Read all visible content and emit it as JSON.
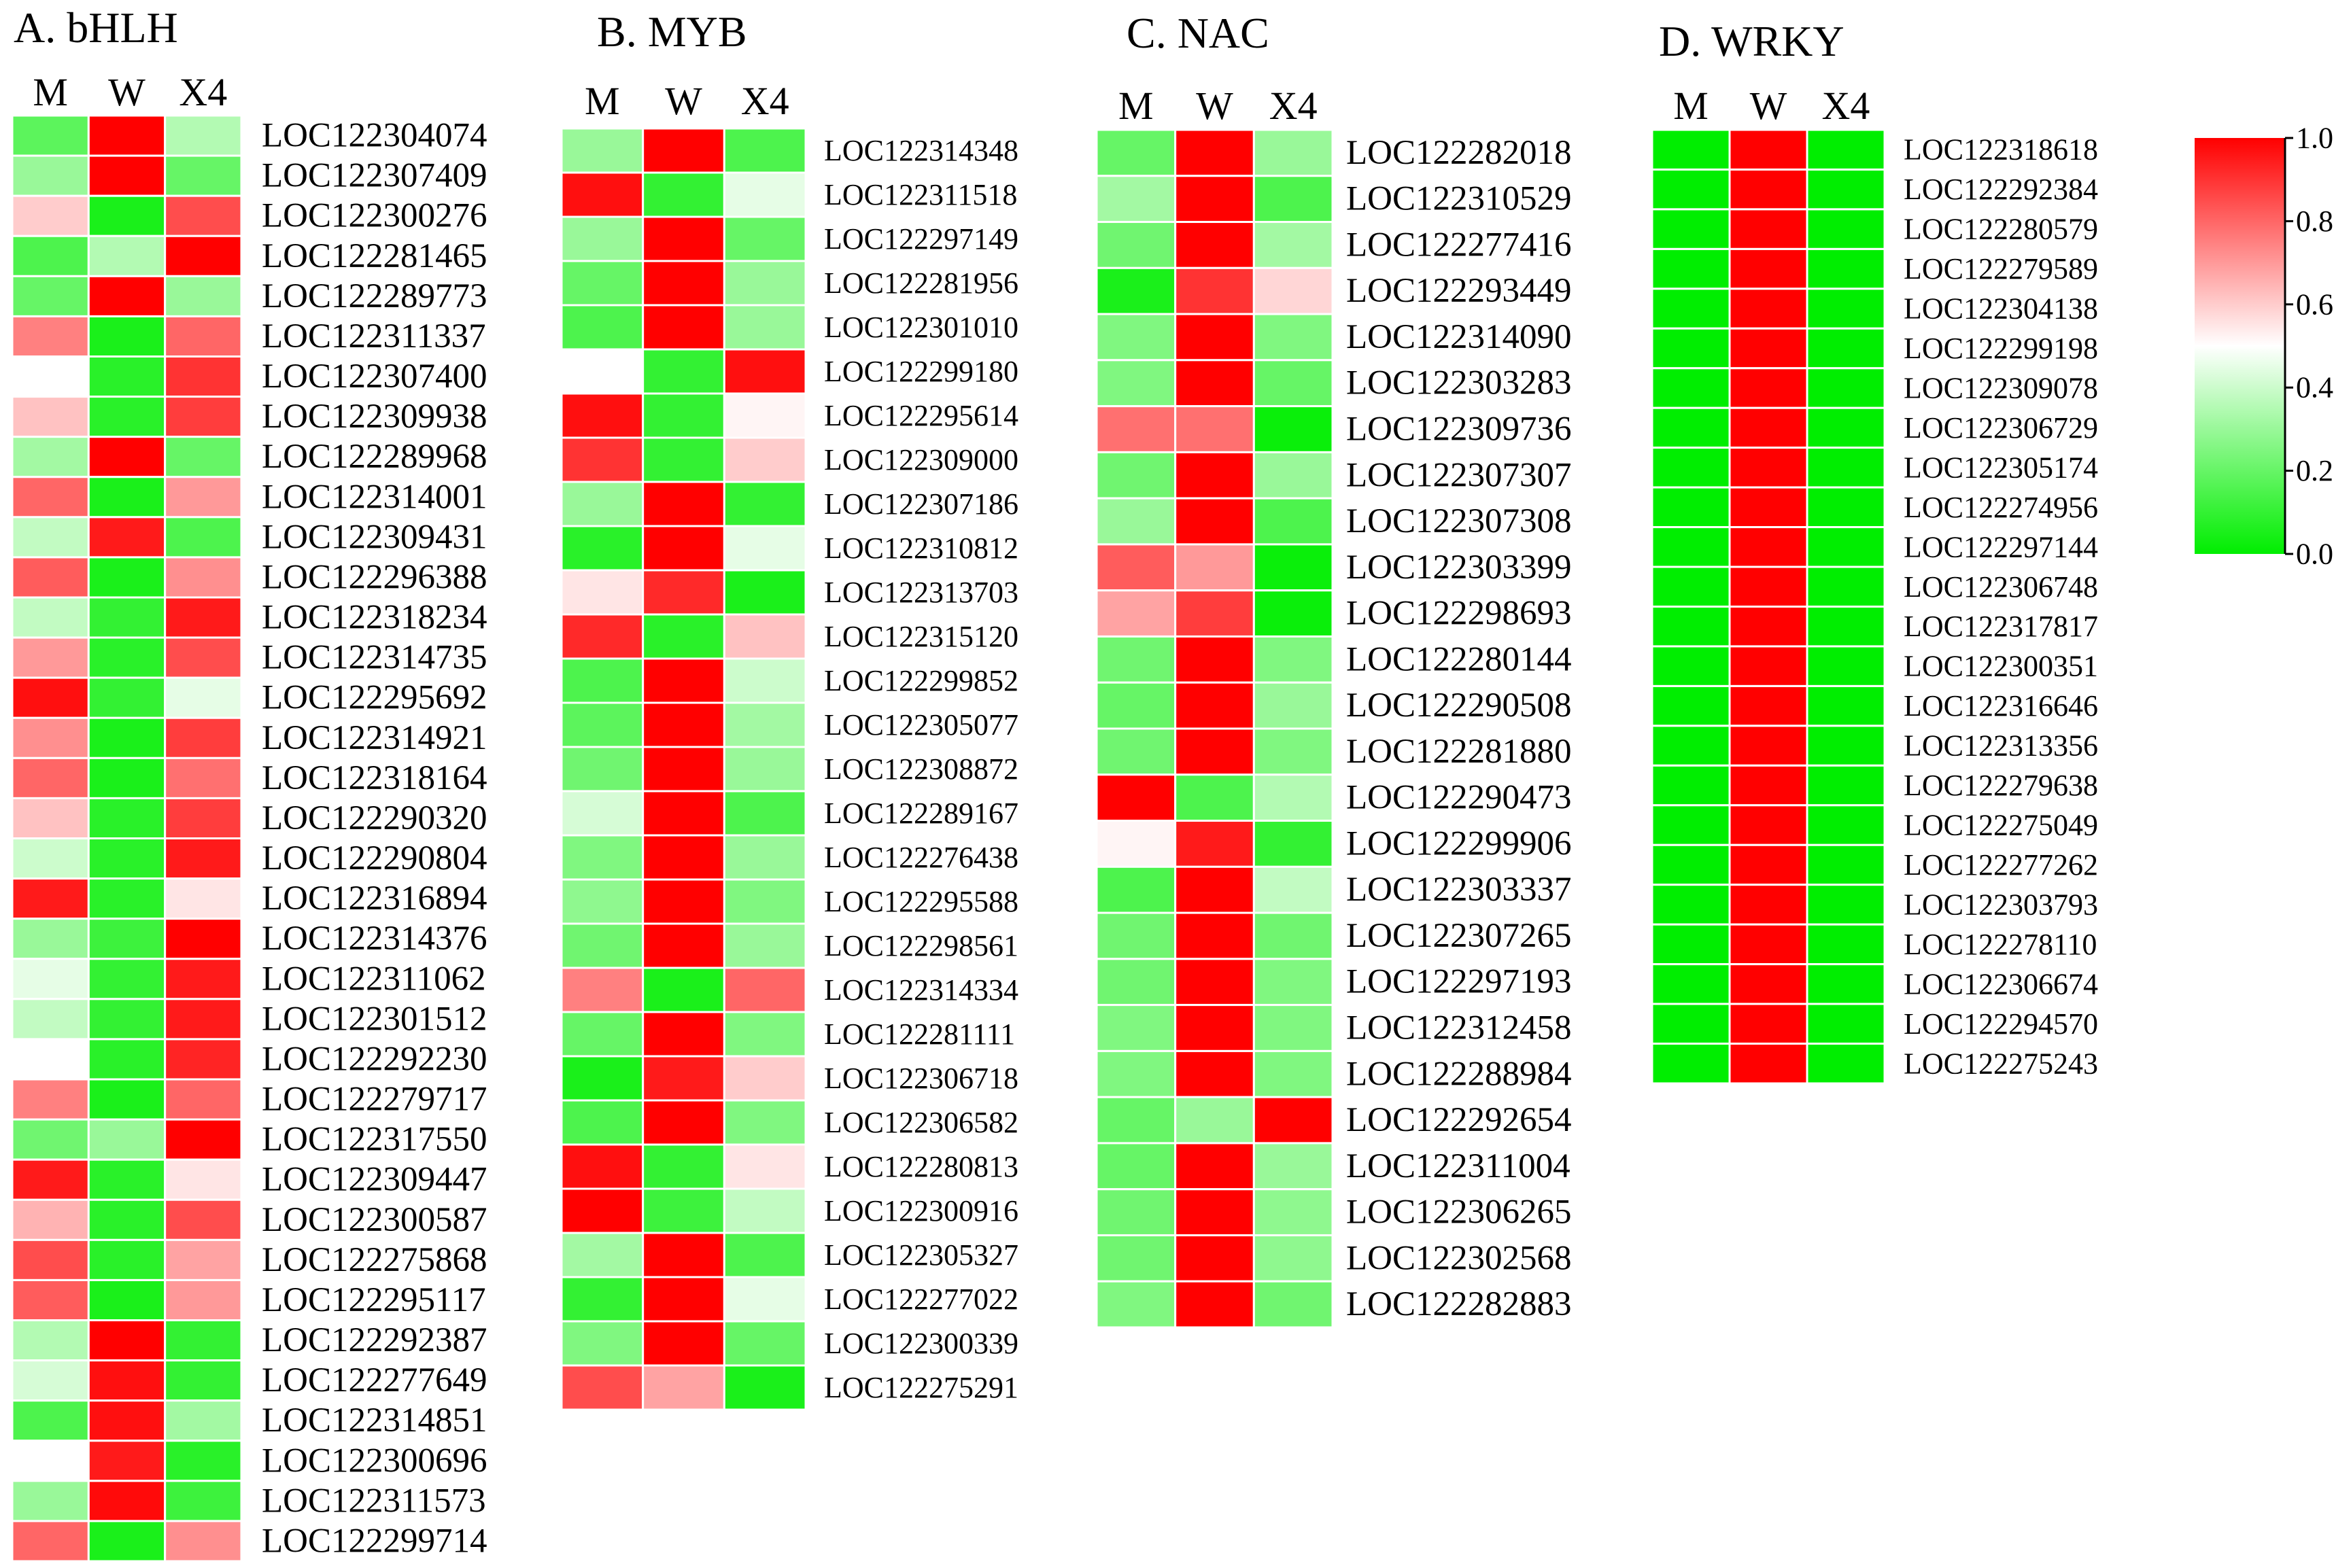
{
  "colors": {
    "low": "#00ee00",
    "mid": "#ffffff",
    "high": "#ff0000",
    "grid": "#ffffff"
  },
  "colorbar": {
    "ticks": [
      "1.00",
      "0.80",
      "0.60",
      "0.40",
      "0.20",
      "0.00"
    ]
  },
  "chart_data": [
    {
      "type": "heatmap",
      "title": "A. bHLH",
      "columns": [
        "M",
        "W",
        "X4"
      ],
      "rows": [
        "LOC122304074",
        "LOC122307409",
        "LOC122300276",
        "LOC122281465",
        "LOC122289773",
        "LOC122311337",
        "LOC122307400",
        "LOC122309938",
        "LOC122289968",
        "LOC122314001",
        "LOC122309431",
        "LOC122296388",
        "LOC122318234",
        "LOC122314735",
        "LOC122295692",
        "LOC122314921",
        "LOC122318164",
        "LOC122290320",
        "LOC122290804",
        "LOC122316894",
        "LOC122314376",
        "LOC122311062",
        "LOC122301512",
        "LOC122292230",
        "LOC122279717",
        "LOC122317550",
        "LOC122309447",
        "LOC122300587",
        "LOC122275868",
        "LOC122295117",
        "LOC122292387",
        "LOC122277649",
        "LOC122314851",
        "LOC122300696",
        "LOC122311573",
        "LOC122299714"
      ],
      "values": [
        [
          0.18,
          1.0,
          0.35
        ],
        [
          0.3,
          1.0,
          0.2
        ],
        [
          0.6,
          0.05,
          0.85
        ],
        [
          0.15,
          0.35,
          1.0
        ],
        [
          0.2,
          1.0,
          0.3
        ],
        [
          0.75,
          0.05,
          0.8
        ],
        [
          0.5,
          0.08,
          0.9
        ],
        [
          0.62,
          0.08,
          0.88
        ],
        [
          0.32,
          1.0,
          0.2
        ],
        [
          0.8,
          0.05,
          0.7
        ],
        [
          0.38,
          0.95,
          0.15
        ],
        [
          0.82,
          0.05,
          0.72
        ],
        [
          0.38,
          0.1,
          0.95
        ],
        [
          0.7,
          0.08,
          0.85
        ],
        [
          0.97,
          0.1,
          0.45
        ],
        [
          0.72,
          0.05,
          0.88
        ],
        [
          0.8,
          0.05,
          0.78
        ],
        [
          0.62,
          0.08,
          0.88
        ],
        [
          0.4,
          0.08,
          0.95
        ],
        [
          0.95,
          0.08,
          0.55
        ],
        [
          0.3,
          0.12,
          1.0
        ],
        [
          0.45,
          0.1,
          0.95
        ],
        [
          0.38,
          0.1,
          0.95
        ],
        [
          0.5,
          0.08,
          0.93
        ],
        [
          0.75,
          0.05,
          0.8
        ],
        [
          0.22,
          0.3,
          1.0
        ],
        [
          0.95,
          0.08,
          0.55
        ],
        [
          0.65,
          0.08,
          0.85
        ],
        [
          0.85,
          0.08,
          0.68
        ],
        [
          0.82,
          0.05,
          0.7
        ],
        [
          0.35,
          1.0,
          0.1
        ],
        [
          0.42,
          0.97,
          0.1
        ],
        [
          0.15,
          0.97,
          0.32
        ],
        [
          0.5,
          0.95,
          0.08
        ],
        [
          0.3,
          0.98,
          0.12
        ],
        [
          0.8,
          0.05,
          0.72
        ]
      ],
      "ylim": [
        0,
        1
      ]
    },
    {
      "type": "heatmap",
      "title": "B. MYB",
      "columns": [
        "M",
        "W",
        "X4"
      ],
      "rows": [
        "LOC122314348",
        "LOC122311518",
        "LOC122297149",
        "LOC122281956",
        "LOC122301010",
        "LOC122299180",
        "LOC122295614",
        "LOC122309000",
        "LOC122307186",
        "LOC122310812",
        "LOC122313703",
        "LOC122315120",
        "LOC122299852",
        "LOC122305077",
        "LOC122308872",
        "LOC122289167",
        "LOC122276438",
        "LOC122295588",
        "LOC122298561",
        "LOC122314334",
        "LOC122281111",
        "LOC122306718",
        "LOC122306582",
        "LOC122280813",
        "LOC122300916",
        "LOC122305327",
        "LOC122277022",
        "LOC122300339",
        "LOC122275291"
      ],
      "values": [
        [
          0.3,
          1.0,
          0.15
        ],
        [
          0.97,
          0.1,
          0.45
        ],
        [
          0.3,
          1.0,
          0.2
        ],
        [
          0.2,
          1.0,
          0.3
        ],
        [
          0.15,
          1.0,
          0.3
        ],
        [
          0.5,
          0.1,
          0.97
        ],
        [
          0.97,
          0.1,
          0.52
        ],
        [
          0.9,
          0.1,
          0.6
        ],
        [
          0.3,
          1.0,
          0.1
        ],
        [
          0.08,
          1.0,
          0.45
        ],
        [
          0.55,
          0.92,
          0.05
        ],
        [
          0.92,
          0.08,
          0.62
        ],
        [
          0.15,
          1.0,
          0.4
        ],
        [
          0.18,
          1.0,
          0.32
        ],
        [
          0.22,
          1.0,
          0.3
        ],
        [
          0.42,
          1.0,
          0.15
        ],
        [
          0.25,
          1.0,
          0.3
        ],
        [
          0.28,
          1.0,
          0.25
        ],
        [
          0.22,
          1.0,
          0.3
        ],
        [
          0.75,
          0.05,
          0.8
        ],
        [
          0.2,
          1.0,
          0.25
        ],
        [
          0.05,
          0.95,
          0.6
        ],
        [
          0.15,
          1.0,
          0.25
        ],
        [
          0.97,
          0.1,
          0.55
        ],
        [
          1.0,
          0.12,
          0.38
        ],
        [
          0.32,
          1.0,
          0.15
        ],
        [
          0.1,
          1.0,
          0.45
        ],
        [
          0.25,
          1.0,
          0.2
        ],
        [
          0.85,
          0.68,
          0.05
        ]
      ],
      "ylim": [
        0,
        1
      ]
    },
    {
      "type": "heatmap",
      "title": "C. NAC",
      "columns": [
        "M",
        "W",
        "X4"
      ],
      "rows": [
        "LOC122282018",
        "LOC122310529",
        "LOC122277416",
        "LOC122293449",
        "LOC122314090",
        "LOC122303283",
        "LOC122309736",
        "LOC122307307",
        "LOC122307308",
        "LOC122303399",
        "LOC122298693",
        "LOC122280144",
        "LOC122290508",
        "LOC122281880",
        "LOC122290473",
        "LOC122299906",
        "LOC122303337",
        "LOC122307265",
        "LOC122297193",
        "LOC122312458",
        "LOC122288984",
        "LOC122292654",
        "LOC122311004",
        "LOC122306265",
        "LOC122302568",
        "LOC122282883"
      ],
      "values": [
        [
          0.2,
          1.0,
          0.3
        ],
        [
          0.32,
          1.0,
          0.15
        ],
        [
          0.22,
          1.0,
          0.32
        ],
        [
          0.05,
          0.9,
          0.58
        ],
        [
          0.25,
          1.0,
          0.25
        ],
        [
          0.25,
          1.0,
          0.2
        ],
        [
          0.78,
          0.78,
          0.02
        ],
        [
          0.22,
          1.0,
          0.3
        ],
        [
          0.3,
          1.0,
          0.15
        ],
        [
          0.82,
          0.7,
          0.02
        ],
        [
          0.68,
          0.88,
          0.02
        ],
        [
          0.22,
          1.0,
          0.25
        ],
        [
          0.2,
          1.0,
          0.3
        ],
        [
          0.22,
          1.0,
          0.25
        ],
        [
          1.0,
          0.15,
          0.35
        ],
        [
          0.52,
          0.95,
          0.1
        ],
        [
          0.15,
          1.0,
          0.38
        ],
        [
          0.22,
          1.0,
          0.22
        ],
        [
          0.22,
          1.0,
          0.25
        ],
        [
          0.25,
          1.0,
          0.25
        ],
        [
          0.25,
          1.0,
          0.25
        ],
        [
          0.2,
          0.3,
          1.0
        ],
        [
          0.2,
          1.0,
          0.3
        ],
        [
          0.22,
          1.0,
          0.28
        ],
        [
          0.22,
          1.0,
          0.28
        ],
        [
          0.25,
          1.0,
          0.22
        ]
      ],
      "ylim": [
        0,
        1
      ]
    },
    {
      "type": "heatmap",
      "title": "D. WRKY",
      "columns": [
        "M",
        "W",
        "X4"
      ],
      "rows": [
        "LOC122318618",
        "LOC122292384",
        "LOC122280579",
        "LOC122279589",
        "LOC122304138",
        "LOC122299198",
        "LOC122309078",
        "LOC122306729",
        "LOC122305174",
        "LOC122274956",
        "LOC122297144",
        "LOC122306748",
        "LOC122317817",
        "LOC122300351",
        "LOC122316646",
        "LOC122313356",
        "LOC122279638",
        "LOC122275049",
        "LOC122277262",
        "LOC122303793",
        "LOC122278110",
        "LOC122306674",
        "LOC122294570",
        "LOC122275243"
      ],
      "values": [
        [
          0.0,
          1.0,
          0.0
        ],
        [
          0.0,
          1.0,
          0.0
        ],
        [
          0.0,
          1.0,
          0.0
        ],
        [
          0.0,
          1.0,
          0.0
        ],
        [
          0.0,
          1.0,
          0.0
        ],
        [
          0.0,
          1.0,
          0.0
        ],
        [
          0.0,
          1.0,
          0.0
        ],
        [
          0.0,
          1.0,
          0.0
        ],
        [
          0.0,
          1.0,
          0.0
        ],
        [
          0.0,
          1.0,
          0.0
        ],
        [
          0.0,
          1.0,
          0.0
        ],
        [
          0.0,
          1.0,
          0.0
        ],
        [
          0.0,
          1.0,
          0.0
        ],
        [
          0.0,
          1.0,
          0.0
        ],
        [
          0.0,
          1.0,
          0.0
        ],
        [
          0.0,
          1.0,
          0.0
        ],
        [
          0.0,
          1.0,
          0.0
        ],
        [
          0.0,
          1.0,
          0.0
        ],
        [
          0.0,
          1.0,
          0.0
        ],
        [
          0.0,
          1.0,
          0.0
        ],
        [
          0.0,
          1.0,
          0.0
        ],
        [
          0.0,
          1.0,
          0.0
        ],
        [
          0.0,
          1.0,
          0.0
        ],
        [
          0.0,
          1.0,
          0.0
        ]
      ],
      "ylim": [
        0,
        1
      ]
    }
  ]
}
